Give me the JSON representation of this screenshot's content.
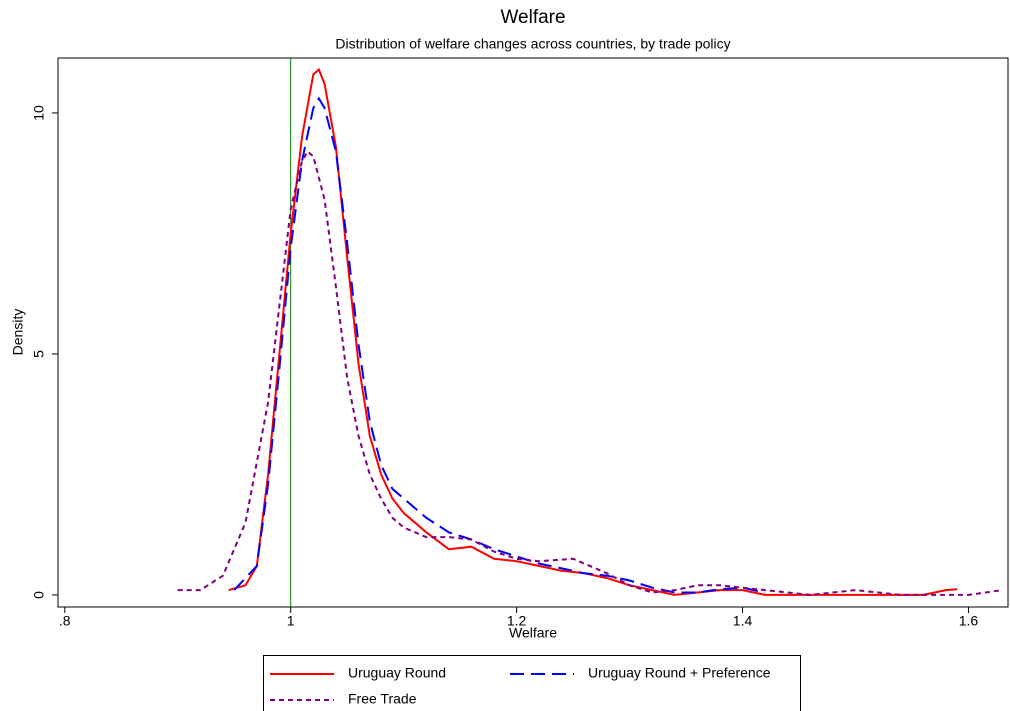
{
  "chart_data": {
    "type": "line",
    "title": "Welfare",
    "subtitle": "Distribution of welfare changes across countries, by trade policy",
    "x_label": "Welfare",
    "y_label": "Density",
    "xlim": [
      0.794,
      1.635
    ],
    "ylim": [
      -0.25,
      11.14
    ],
    "xticks": [
      {
        "value": 0.8,
        "label": ".8"
      },
      1,
      1.2,
      1.4,
      1.6
    ],
    "yticks": [
      0,
      5,
      10
    ],
    "reference_line": {
      "x": 1,
      "color": "#008000"
    },
    "series": [
      {
        "name": "Uruguay Round",
        "color": "#ff0000",
        "dash": "solid",
        "x": [
          0.945,
          0.96,
          0.97,
          0.98,
          0.99,
          1.0,
          1.01,
          1.02,
          1.025,
          1.03,
          1.04,
          1.05,
          1.06,
          1.07,
          1.08,
          1.09,
          1.1,
          1.12,
          1.14,
          1.16,
          1.18,
          1.2,
          1.22,
          1.24,
          1.26,
          1.28,
          1.3,
          1.32,
          1.34,
          1.36,
          1.38,
          1.4,
          1.42,
          1.5,
          1.56,
          1.58,
          1.59
        ],
        "y": [
          0.1,
          0.2,
          0.6,
          2.5,
          5,
          7.5,
          9.5,
          10.8,
          10.9,
          10.6,
          9.3,
          7.0,
          4.8,
          3.3,
          2.5,
          2.0,
          1.7,
          1.3,
          0.95,
          1.0,
          0.75,
          0.7,
          0.6,
          0.5,
          0.45,
          0.35,
          0.2,
          0.1,
          0.0,
          0.05,
          0.1,
          0.1,
          0.0,
          0.0,
          0.0,
          0.1,
          0.12
        ]
      },
      {
        "name": "Uruguay Round + Preference",
        "color": "#0000ff",
        "dash": "long",
        "x": [
          0.95,
          0.97,
          0.98,
          0.99,
          1.0,
          1.01,
          1.02,
          1.025,
          1.03,
          1.04,
          1.05,
          1.06,
          1.07,
          1.08,
          1.09,
          1.1,
          1.12,
          1.14,
          1.16,
          1.18,
          1.2,
          1.22,
          1.24,
          1.26,
          1.28,
          1.3,
          1.32,
          1.34,
          1.36,
          1.38,
          1.4,
          1.42
        ],
        "y": [
          0.1,
          0.6,
          2.3,
          4.7,
          7.2,
          9.0,
          10.1,
          10.3,
          10.1,
          9.2,
          7.3,
          5.2,
          3.6,
          2.7,
          2.2,
          2.0,
          1.6,
          1.3,
          1.15,
          0.95,
          0.8,
          0.65,
          0.55,
          0.45,
          0.4,
          0.3,
          0.15,
          0.05,
          0.05,
          0.12,
          0.15,
          0.05
        ]
      },
      {
        "name": "Free Trade",
        "color": "#800080",
        "dash": "short",
        "x": [
          0.9,
          0.92,
          0.94,
          0.96,
          0.98,
          0.99,
          1.0,
          1.01,
          1.015,
          1.02,
          1.03,
          1.04,
          1.05,
          1.06,
          1.07,
          1.08,
          1.09,
          1.1,
          1.12,
          1.14,
          1.16,
          1.18,
          1.2,
          1.22,
          1.25,
          1.28,
          1.3,
          1.32,
          1.34,
          1.36,
          1.38,
          1.4,
          1.44,
          1.46,
          1.5,
          1.54,
          1.6,
          1.63
        ],
        "y": [
          0.1,
          0.1,
          0.4,
          1.5,
          4.0,
          6.0,
          8.0,
          9.0,
          9.2,
          9.1,
          8.2,
          6.4,
          4.5,
          3.3,
          2.5,
          2.0,
          1.6,
          1.4,
          1.2,
          1.2,
          1.15,
          0.9,
          0.75,
          0.7,
          0.75,
          0.45,
          0.2,
          0.05,
          0.1,
          0.2,
          0.2,
          0.15,
          0.05,
          0.0,
          0.1,
          0.0,
          0.0,
          0.1
        ]
      }
    ]
  }
}
